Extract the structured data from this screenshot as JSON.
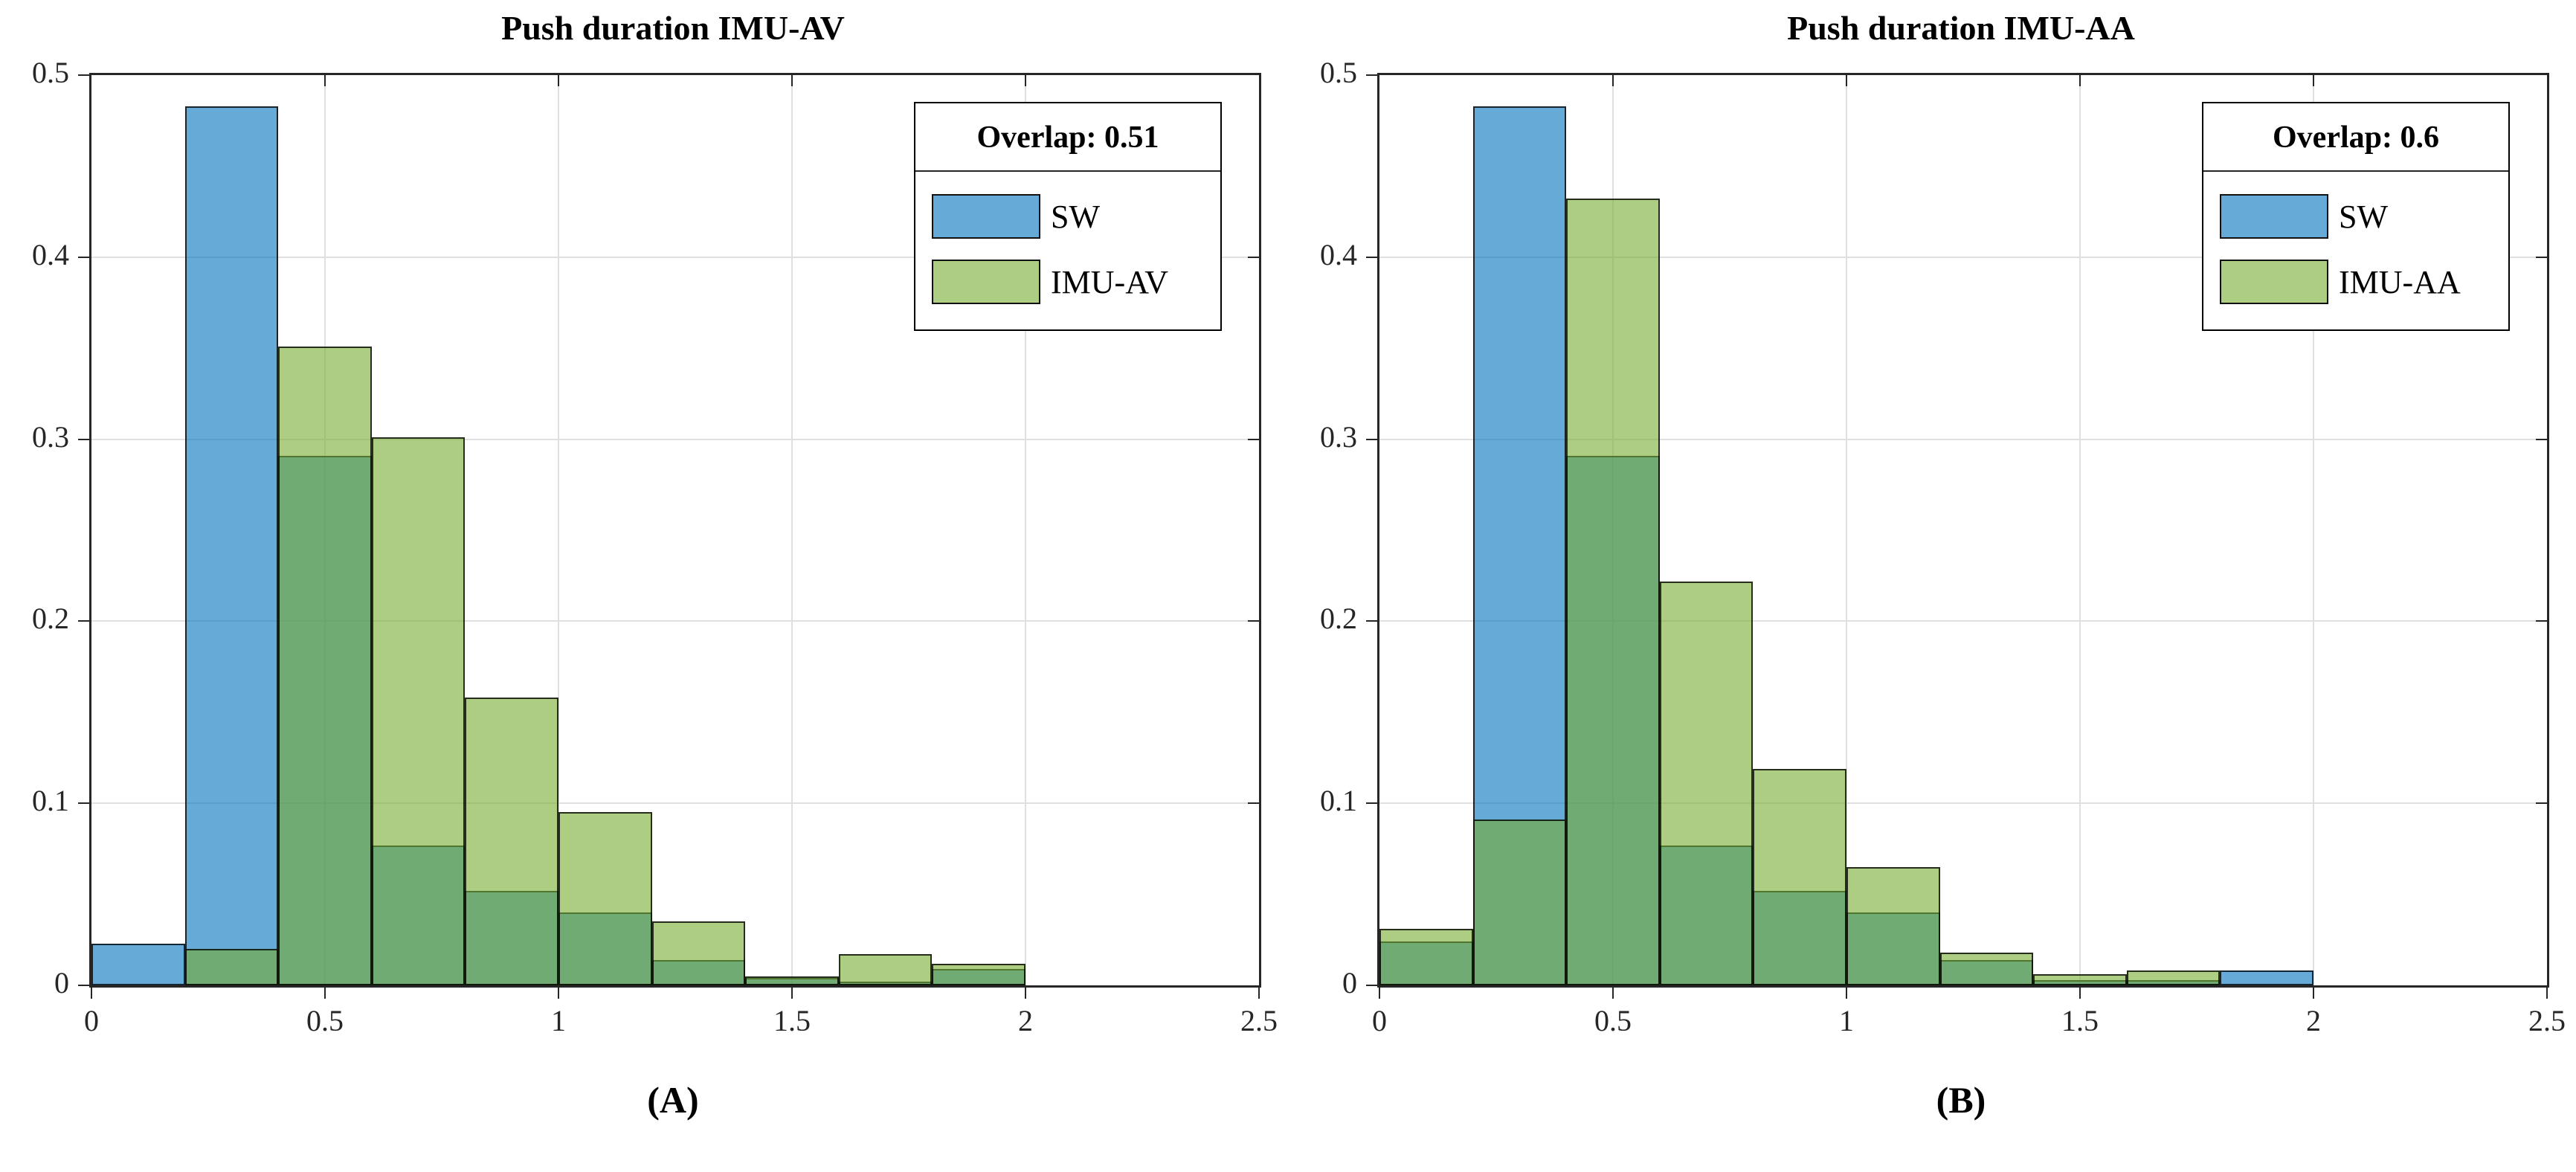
{
  "page": {
    "background": "#ffffff"
  },
  "chart_data": [
    {
      "type": "histogram",
      "title": "Push duration IMU-AV",
      "caption": "(A)",
      "legend": {
        "title": "Overlap: 0.51",
        "position": "top-right"
      },
      "bin_edges": [
        0,
        0.2,
        0.4,
        0.6,
        0.8,
        1.0,
        1.2,
        1.4,
        1.6,
        1.8,
        2.0
      ],
      "series": [
        {
          "name": "SW",
          "fill": "rgba(0,114,189,0.6)",
          "swatch": "#66aad8",
          "values": [
            0.023,
            0.483,
            0.291,
            0.077,
            0.052,
            0.04,
            0.014,
            0.004,
            0.002,
            0.009
          ]
        },
        {
          "name": "IMU-AV",
          "fill": "rgba(119,172,48,0.6)",
          "swatch": "#adcd83",
          "values": [
            0,
            0.02,
            0.351,
            0.301,
            0.158,
            0.095,
            0.035,
            0.005,
            0.017,
            0.012
          ]
        }
      ],
      "overlap_color": "#70ab73",
      "xlim": [
        0,
        2.5
      ],
      "ylim": [
        0,
        0.5
      ],
      "xticks": [
        0,
        0.5,
        1,
        1.5,
        2,
        2.5
      ],
      "xtick_labels": [
        "0",
        "0.5",
        "1",
        "1.5",
        "2",
        "2.5"
      ],
      "yticks": [
        0,
        0.1,
        0.2,
        0.3,
        0.4,
        0.5
      ],
      "ytick_labels": [
        "0",
        "0.1",
        "0.2",
        "0.3",
        "0.4",
        "0.5"
      ],
      "grid": true
    },
    {
      "type": "histogram",
      "title": "Push duration IMU-AA",
      "caption": "(B)",
      "legend": {
        "title": "Overlap: 0.6",
        "position": "top-right"
      },
      "bin_edges": [
        0,
        0.2,
        0.4,
        0.6,
        0.8,
        1.0,
        1.2,
        1.4,
        1.6,
        1.8,
        2.0
      ],
      "series": [
        {
          "name": "SW",
          "fill": "rgba(0,114,189,0.6)",
          "swatch": "#66aad8",
          "values": [
            0.024,
            0.483,
            0.291,
            0.077,
            0.052,
            0.04,
            0.014,
            0.003,
            0.003,
            0.008
          ]
        },
        {
          "name": "IMU-AA",
          "fill": "rgba(119,172,48,0.6)",
          "swatch": "#adcd83",
          "values": [
            0.031,
            0.091,
            0.432,
            0.222,
            0.119,
            0.065,
            0.018,
            0.006,
            0.008,
            0
          ]
        }
      ],
      "overlap_color": "#70ab73",
      "xlim": [
        0,
        2.5
      ],
      "ylim": [
        0,
        0.5
      ],
      "xticks": [
        0,
        0.5,
        1,
        1.5,
        2,
        2.5
      ],
      "xtick_labels": [
        "0",
        "0.5",
        "1",
        "1.5",
        "2",
        "2.5"
      ],
      "yticks": [
        0,
        0.1,
        0.2,
        0.3,
        0.4,
        0.5
      ],
      "ytick_labels": [
        "0",
        "0.1",
        "0.2",
        "0.3",
        "0.4",
        "0.5"
      ],
      "grid": true
    }
  ]
}
